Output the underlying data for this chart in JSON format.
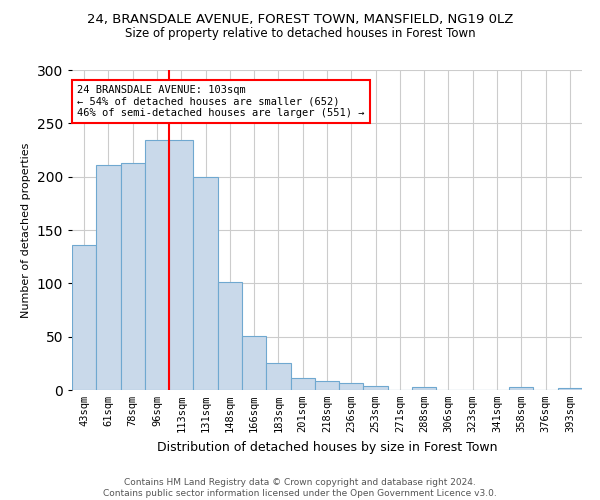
{
  "title_line1": "24, BRANSDALE AVENUE, FOREST TOWN, MANSFIELD, NG19 0LZ",
  "title_line2": "Size of property relative to detached houses in Forest Town",
  "xlabel": "Distribution of detached houses by size in Forest Town",
  "ylabel": "Number of detached properties",
  "footnote": "Contains HM Land Registry data © Crown copyright and database right 2024.\nContains public sector information licensed under the Open Government Licence v3.0.",
  "categories": [
    "43sqm",
    "61sqm",
    "78sqm",
    "96sqm",
    "113sqm",
    "131sqm",
    "148sqm",
    "166sqm",
    "183sqm",
    "201sqm",
    "218sqm",
    "236sqm",
    "253sqm",
    "271sqm",
    "288sqm",
    "306sqm",
    "323sqm",
    "341sqm",
    "358sqm",
    "376sqm",
    "393sqm"
  ],
  "values": [
    136,
    211,
    213,
    234,
    234,
    200,
    101,
    51,
    25,
    11,
    8,
    7,
    4,
    0,
    3,
    0,
    0,
    0,
    3,
    0,
    2
  ],
  "bar_color": "#c9d9ea",
  "bar_edge_color": "#6fa8d0",
  "property_line_x": 3.5,
  "annotation_text": "24 BRANSDALE AVENUE: 103sqm\n← 54% of detached houses are smaller (652)\n46% of semi-detached houses are larger (551) →",
  "annotation_box_color": "white",
  "annotation_box_edge_color": "red",
  "property_line_color": "red",
  "ylim": [
    0,
    300
  ],
  "yticks": [
    0,
    50,
    100,
    150,
    200,
    250,
    300
  ],
  "bg_color": "white",
  "grid_color": "#cccccc"
}
